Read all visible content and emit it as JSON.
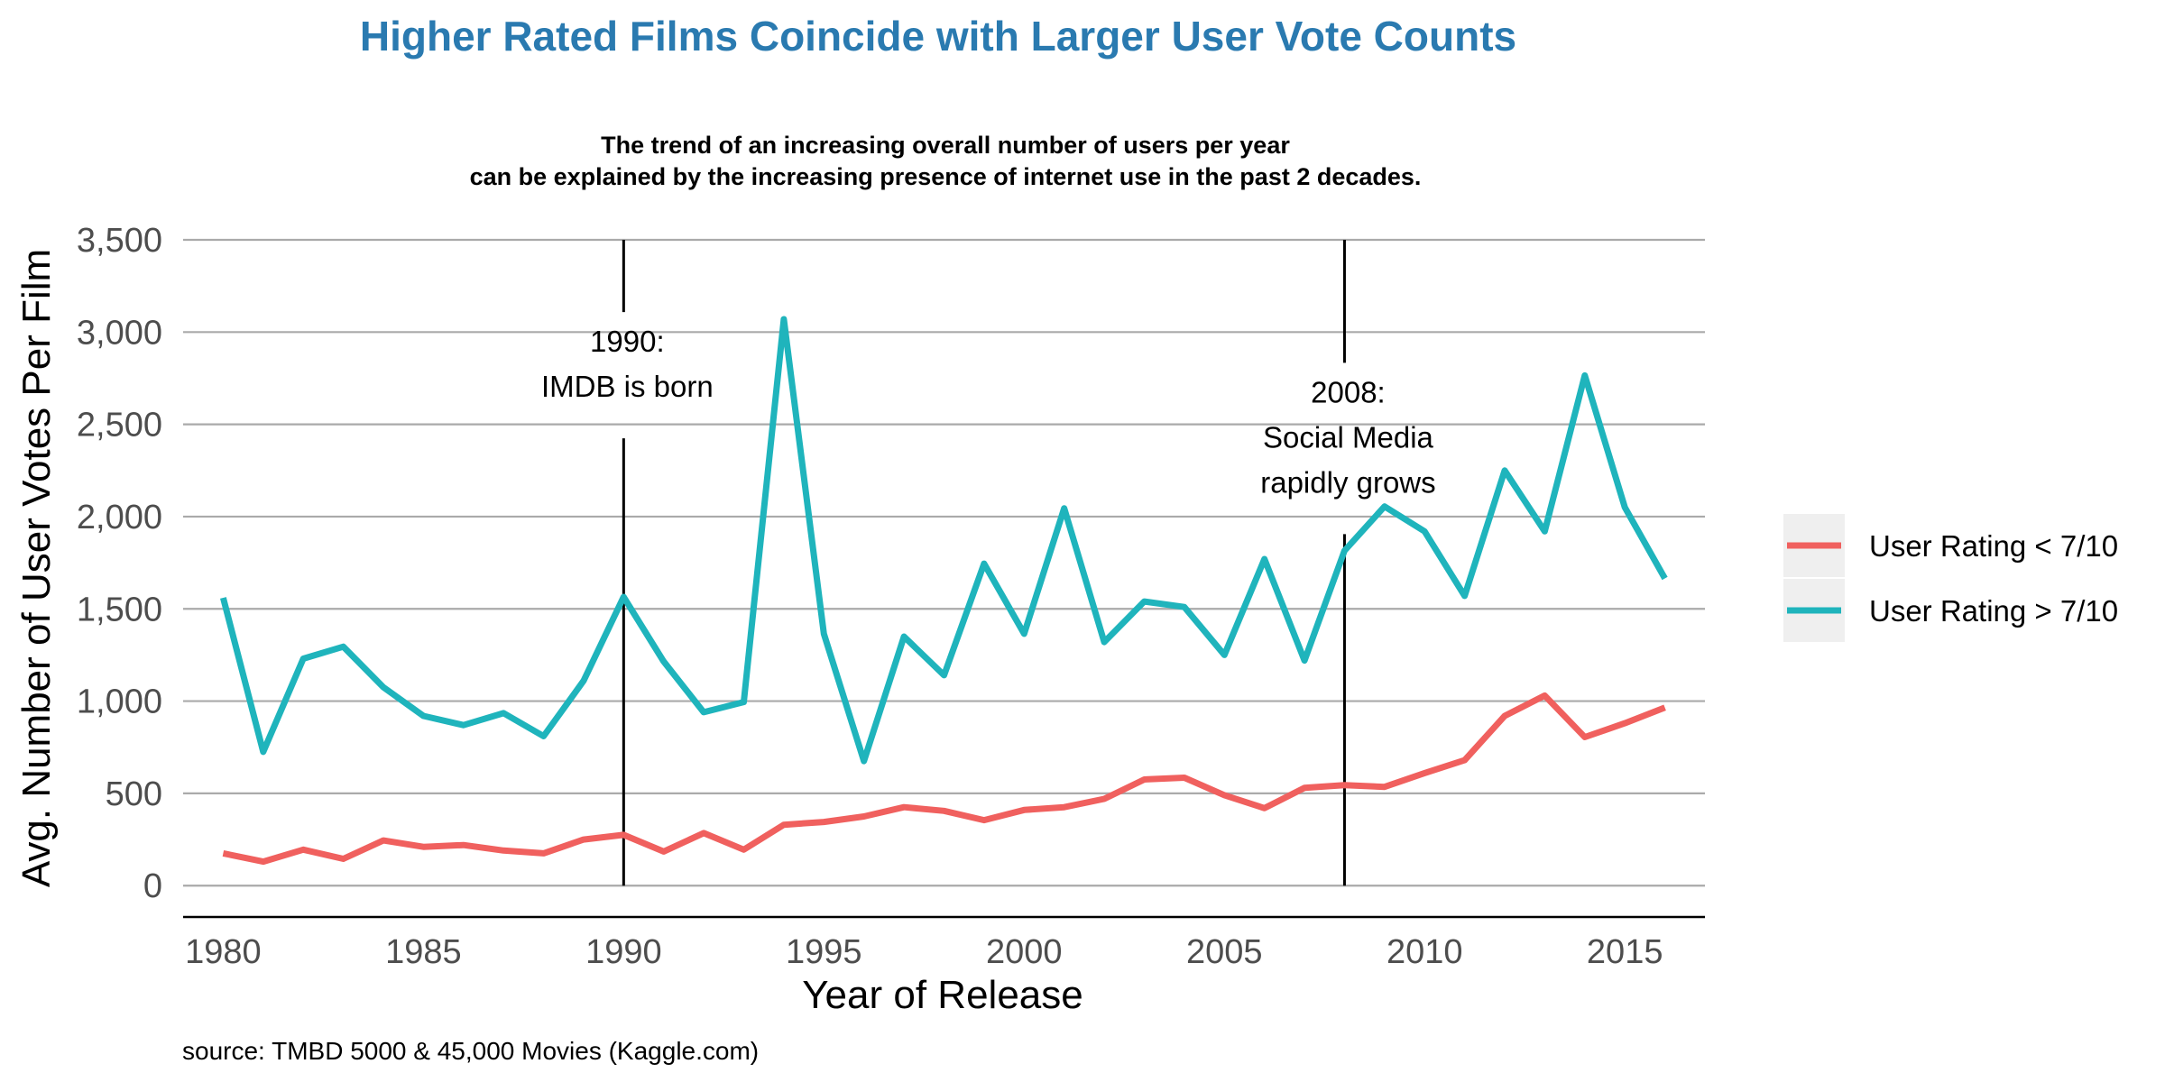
{
  "chart_data": {
    "type": "line",
    "title": "Higher Rated Films Coincide with Larger User Vote Counts",
    "subtitle": [
      "The trend of an increasing overall number of users per year",
      "can be explained by the increasing presence of internet use in the past 2 decades."
    ],
    "xlabel": "Year of Release",
    "ylabel": "Avg. Number of User Votes Per Film",
    "caption": "source: TMBD 5000 & 45,000 Movies (Kaggle.com)",
    "xlim": [
      1979,
      2017
    ],
    "ylim": [
      -170,
      3500
    ],
    "x_ticks": [
      1980,
      1985,
      1990,
      1995,
      2000,
      2005,
      2010,
      2015
    ],
    "x_tick_labels": [
      "1980",
      "1985",
      "1990",
      "1995",
      "2000",
      "2005",
      "2010",
      "2015"
    ],
    "y_ticks": [
      0,
      500,
      1000,
      1500,
      2000,
      2500,
      3000,
      3500
    ],
    "y_tick_labels": [
      "0",
      "500",
      "1,000",
      "1,500",
      "2,000",
      "2,500",
      "3,000",
      "3,500"
    ],
    "grid": "horizontal major",
    "legend_position": "right",
    "x": [
      1980,
      1981,
      1982,
      1983,
      1984,
      1985,
      1986,
      1987,
      1988,
      1989,
      1990,
      1991,
      1992,
      1993,
      1994,
      1995,
      1996,
      1997,
      1998,
      1999,
      2000,
      2001,
      2002,
      2003,
      2004,
      2005,
      2006,
      2007,
      2008,
      2009,
      2010,
      2011,
      2012,
      2013,
      2014,
      2015,
      2016
    ],
    "series": [
      {
        "name": "User Rating < 7/10",
        "color": "#F0605E",
        "values": [
          175,
          130,
          195,
          145,
          245,
          210,
          220,
          190,
          175,
          250,
          275,
          185,
          285,
          195,
          330,
          345,
          375,
          425,
          405,
          355,
          410,
          425,
          470,
          575,
          585,
          490,
          420,
          530,
          545,
          535,
          610,
          680,
          920,
          1030,
          805,
          880,
          965
        ]
      },
      {
        "name": "User Rating > 7/10",
        "color": "#1FB4BC",
        "values": [
          1560,
          725,
          1230,
          1295,
          1075,
          920,
          870,
          935,
          810,
          1110,
          1565,
          1215,
          940,
          995,
          3070,
          1365,
          675,
          1350,
          1140,
          1745,
          1365,
          2045,
          1320,
          1540,
          1510,
          1250,
          1770,
          1220,
          1815,
          2055,
          1920,
          1570,
          2250,
          1920,
          2765,
          2050,
          1665
        ]
      }
    ],
    "reference_lines": [
      {
        "x": 1990,
        "label": [
          "1990:",
          "IMDB is born"
        ]
      },
      {
        "x": 2008,
        "label": [
          "2008:",
          "Social Media",
          "rapidly grows"
        ]
      }
    ],
    "colors": {
      "title": "#2A7AB0",
      "grid": "#AAAAAA",
      "axis": "#000000",
      "legend_key_bg": "#EFEFEF"
    }
  }
}
